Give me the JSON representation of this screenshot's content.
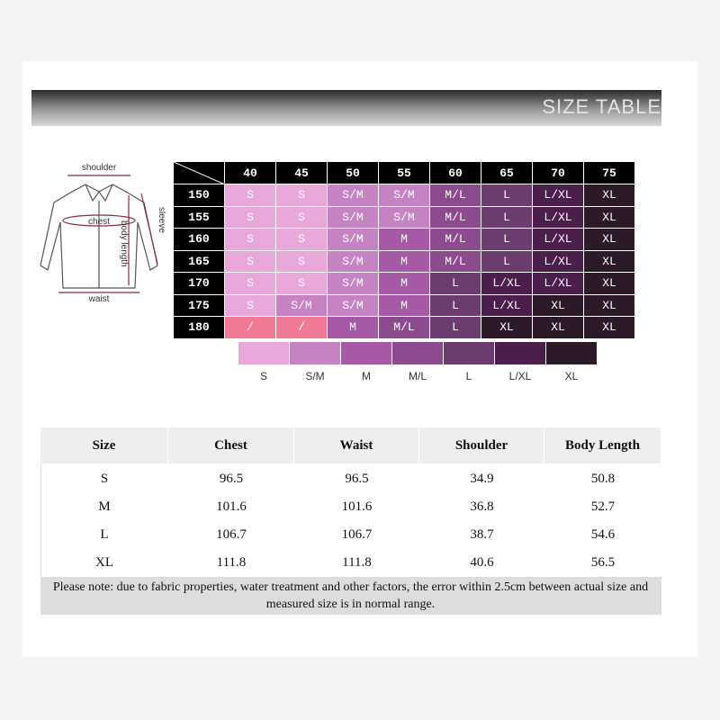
{
  "header": {
    "title": "SIZE TABLE"
  },
  "diagram": {
    "shoulder": "shoulder",
    "sleeve": "sleeve",
    "chest": "chest",
    "body_length": "body length",
    "waist": "waist"
  },
  "grid": {
    "columns": [
      40,
      45,
      50,
      55,
      60,
      65,
      70,
      75
    ],
    "rows": [
      {
        "label": 150,
        "cells": [
          "S",
          "S",
          "S/M",
          "S/M",
          "M/L",
          "L",
          "L/XL",
          "XL"
        ]
      },
      {
        "label": 155,
        "cells": [
          "S",
          "S",
          "S/M",
          "S/M",
          "M/L",
          "L",
          "L/XL",
          "XL"
        ]
      },
      {
        "label": 160,
        "cells": [
          "S",
          "S",
          "S/M",
          "M",
          "M/L",
          "L",
          "L/XL",
          "XL"
        ]
      },
      {
        "label": 165,
        "cells": [
          "S",
          "S",
          "S/M",
          "M",
          "M/L",
          "L",
          "L/XL",
          "XL"
        ]
      },
      {
        "label": 170,
        "cells": [
          "S",
          "S",
          "S/M",
          "M",
          "L",
          "L/XL",
          "L/XL",
          "XL"
        ]
      },
      {
        "label": 175,
        "cells": [
          "S",
          "S/M",
          "S/M",
          "M",
          "L",
          "L/XL",
          "XL",
          "XL"
        ]
      },
      {
        "label": 180,
        "cells": [
          "/",
          "/",
          "M",
          "M/L",
          "L",
          "XL",
          "XL",
          "XL"
        ]
      }
    ],
    "none_color": "#f07a95"
  },
  "legend": [
    {
      "label": "S",
      "color": "#e8a9da"
    },
    {
      "label": "S/M",
      "color": "#c683c4"
    },
    {
      "label": "M",
      "color": "#a65aa6"
    },
    {
      "label": "M/L",
      "color": "#8b4b8e"
    },
    {
      "label": "L",
      "color": "#6c3b70"
    },
    {
      "label": "L/XL",
      "color": "#4b1e4c"
    },
    {
      "label": "XL",
      "color": "#2d1a29"
    }
  ],
  "table": {
    "headers": [
      "Size",
      "Chest",
      "Waist",
      "Shoulder",
      "Body Length"
    ],
    "rows": [
      [
        "S",
        96.5,
        96.5,
        34.9,
        50.8
      ],
      [
        "M",
        101.6,
        101.6,
        36.8,
        52.7
      ],
      [
        "L",
        106.7,
        106.7,
        38.7,
        54.6
      ],
      [
        "XL",
        111.8,
        111.8,
        40.6,
        56.5
      ]
    ],
    "note": "Please note: due to fabric properties, water treatment and other factors, the error within 2.5cm between actual size and measured size is in normal range."
  }
}
